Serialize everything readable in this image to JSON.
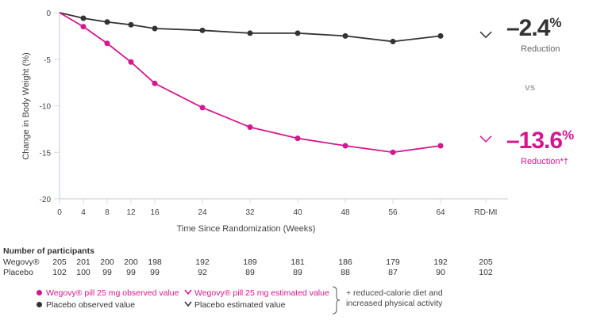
{
  "chart_data": {
    "type": "line",
    "xlabel": "Time Since Randomization (Weeks)",
    "ylabel": "Change in Body Weight (%)",
    "x": [
      0,
      4,
      8,
      12,
      16,
      24,
      32,
      40,
      48,
      56,
      64
    ],
    "x_tick_labels": [
      "0",
      "4",
      "8",
      "12",
      "16",
      "24",
      "32",
      "40",
      "48",
      "56",
      "64",
      "RD-MI"
    ],
    "y_ticks": [
      0,
      -5,
      -10,
      -15,
      -20
    ],
    "ylim": [
      -20,
      0
    ],
    "grid": false,
    "series": [
      {
        "name": "Wegovy® pill 25 mg observed value",
        "color": "#d6168f",
        "values": [
          0,
          -1.5,
          -3.3,
          -5.3,
          -7.6,
          -10.2,
          -12.3,
          -13.5,
          -14.3,
          -15.0,
          -14.3
        ],
        "estimated": -13.6
      },
      {
        "name": "Placebo observed value",
        "color": "#333333",
        "values": [
          0,
          -0.6,
          -1.0,
          -1.3,
          -1.7,
          -1.9,
          -2.2,
          -2.2,
          -2.5,
          -3.1,
          -2.5
        ],
        "estimated": -2.4
      }
    ]
  },
  "callouts": {
    "placebo_value": "–2.4",
    "placebo_unit": "%",
    "placebo_label": "Reduction",
    "vs": "vs",
    "wegovy_value": "–13.6",
    "wegovy_unit": "%",
    "wegovy_label": "Reduction*†"
  },
  "participants": {
    "title": "Number of participants",
    "rows": [
      {
        "label": "Wegovy®",
        "values": [
          "205",
          "201",
          "200",
          "200",
          "198",
          "192",
          "189",
          "181",
          "186",
          "179",
          "192",
          "205"
        ]
      },
      {
        "label": "Placebo",
        "values": [
          "102",
          "100",
          "99",
          "99",
          "99",
          "92",
          "89",
          "89",
          "88",
          "87",
          "90",
          "102"
        ]
      }
    ]
  },
  "legend": {
    "wegovy_observed": "Wegovy® pill 25 mg observed value",
    "wegovy_estimated": "Wegovy® pill 25 mg estimated value",
    "placebo_observed": "Placebo observed value",
    "placebo_estimated": "Placebo estimated value",
    "note_line1": "+ reduced-calorie diet and",
    "note_line2": "increased physical activity"
  },
  "colors": {
    "wegovy": "#d6168f",
    "placebo": "#333333",
    "axis": "#d5dbe6"
  }
}
